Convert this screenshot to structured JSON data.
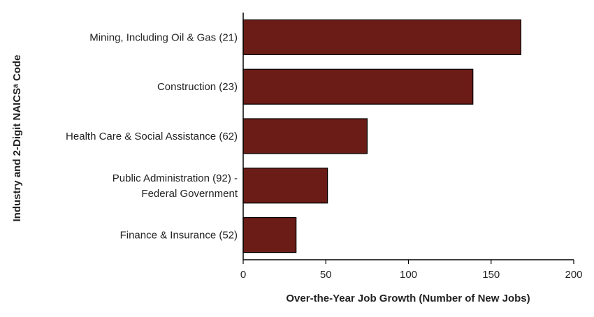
{
  "chart_data": {
    "type": "bar",
    "orientation": "horizontal",
    "categories": [
      [
        "Mining, Including Oil & Gas (21)"
      ],
      [
        "Construction (23)"
      ],
      [
        "Health Care & Social Assistance (62)"
      ],
      [
        "Public Administration (92) -",
        "Federal Government"
      ],
      [
        "Finance & Insurance (52)"
      ]
    ],
    "values": [
      168,
      139,
      75,
      51,
      32
    ],
    "xlabel": "Over-the-Year Job Growth (Number of New Jobs)",
    "ylabel": "Industry and 2-Digit NAICSᵃ Code",
    "xlim": [
      0,
      200
    ],
    "xticks": [
      0,
      50,
      100,
      150,
      200
    ],
    "bar_color": "#6b1c16",
    "bar_edge_color": "#000000",
    "grid": false,
    "legend": "none"
  }
}
